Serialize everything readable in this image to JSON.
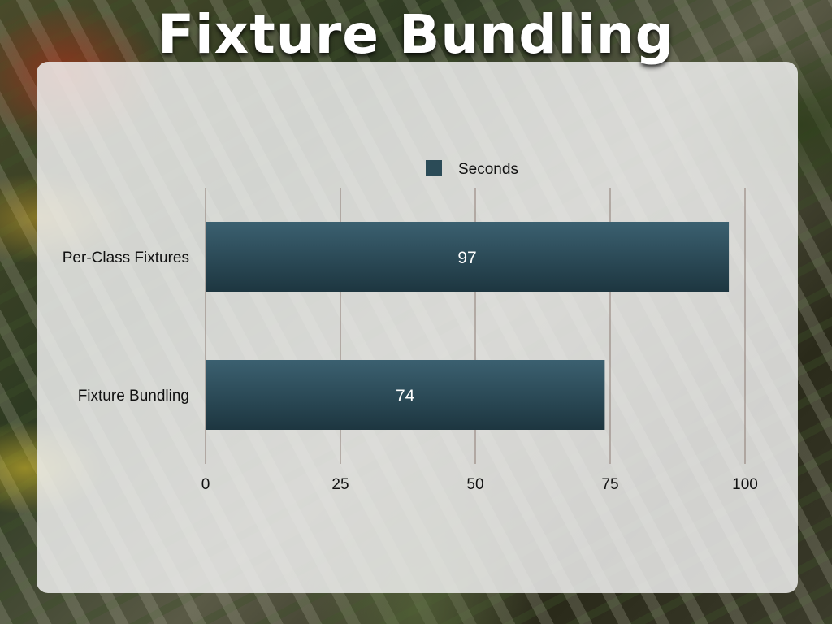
{
  "slide": {
    "title": "Fixture Bundling"
  },
  "chart_data": {
    "type": "bar",
    "orientation": "horizontal",
    "categories": [
      "Per-Class Fixtures",
      "Fixture Bundling"
    ],
    "series": [
      {
        "name": "Seconds",
        "values": [
          97,
          74
        ],
        "color": "#2b4b57"
      }
    ],
    "data_labels": [
      "97",
      "74"
    ],
    "xticks": [
      "0",
      "25",
      "50",
      "75",
      "100"
    ],
    "xlim": [
      0,
      100
    ],
    "grid": true,
    "legend": "top-center",
    "gridline_color": "#8c7a72"
  }
}
